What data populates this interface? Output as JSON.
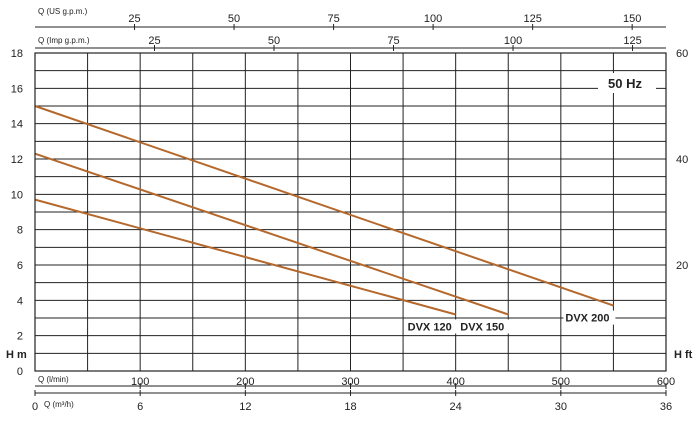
{
  "chart_data": {
    "type": "line",
    "badge": "50 Hz",
    "axes": {
      "left": {
        "label": "H m",
        "range": [
          0,
          18
        ],
        "ticks": [
          0,
          2,
          4,
          6,
          8,
          10,
          12,
          14,
          16,
          18
        ]
      },
      "right": {
        "label": "H ft",
        "range": [
          0,
          60
        ],
        "ticks": [
          20,
          40,
          60
        ]
      },
      "x_lmin": {
        "label": "Q (l/min)",
        "range": [
          0,
          600
        ],
        "ticks": [
          100,
          200,
          300,
          400,
          500,
          600
        ],
        "grid_step": 50
      },
      "x_m3h": {
        "label": "Q (m³/h)",
        "range": [
          0,
          36
        ],
        "ticks": [
          0,
          6,
          12,
          18,
          24,
          30,
          36
        ]
      },
      "x_imp": {
        "label": "Q (Imp g.p.m.)",
        "range": [
          0,
          132
        ],
        "ticks": [
          25,
          50,
          75,
          100,
          125
        ]
      },
      "x_us": {
        "label": "Q (US g.p.m.)",
        "range": [
          0,
          158.5
        ],
        "ticks": [
          25,
          50,
          75,
          100,
          125,
          150
        ]
      }
    },
    "series": [
      {
        "name": "DVX 120",
        "color": "#b5682c",
        "x": [
          0,
          400
        ],
        "y": [
          9.7,
          3.2
        ]
      },
      {
        "name": "DVX 150",
        "color": "#b5682c",
        "x": [
          0,
          450
        ],
        "y": [
          12.3,
          3.2
        ]
      },
      {
        "name": "DVX 200",
        "color": "#b5682c",
        "x": [
          0,
          550
        ],
        "y": [
          15.0,
          3.7
        ]
      }
    ]
  }
}
